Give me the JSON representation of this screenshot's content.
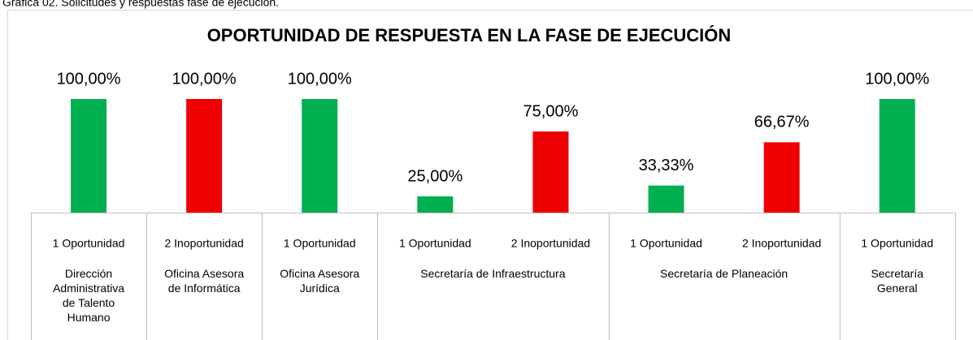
{
  "chart_data": {
    "type": "bar",
    "caption": "Gráfica 02. Solicitudes y respuestas fase de ejecución.",
    "title": "OPORTUNIDAD DE RESPUESTA EN LA FASE DE EJECUCIÓN",
    "categories": [
      "1 Oportunidad",
      "2 Inoportunidad",
      "1 Oportunidad",
      "1 Oportunidad",
      "2 Inoportunidad",
      "1 Oportunidad",
      "2 Inoportunidad",
      "1 Oportunidad"
    ],
    "groups": [
      {
        "name": "Dirección Administrativa de Talento Humano",
        "span": 1
      },
      {
        "name": "Oficina Asesora de Informática",
        "span": 1
      },
      {
        "name": "Oficina Asesora Jurídica",
        "span": 1
      },
      {
        "name": "Secretaría de Infraestructura",
        "span": 2
      },
      {
        "name": "Secretaría de Planeación",
        "span": 2
      },
      {
        "name": "Secretaría General",
        "span": 1
      }
    ],
    "values": [
      100,
      100,
      100,
      25,
      75,
      33.33,
      66.67,
      100
    ],
    "value_labels": [
      "100,00%",
      "100,00%",
      "100,00%",
      "25,00%",
      "75,00%",
      "33,33%",
      "66,67%",
      "100,00%"
    ],
    "colors": [
      "#00b050",
      "#ee0000",
      "#00b050",
      "#00b050",
      "#ee0000",
      "#00b050",
      "#ee0000",
      "#00b050"
    ],
    "ylim": [
      12.5,
      100
    ]
  }
}
